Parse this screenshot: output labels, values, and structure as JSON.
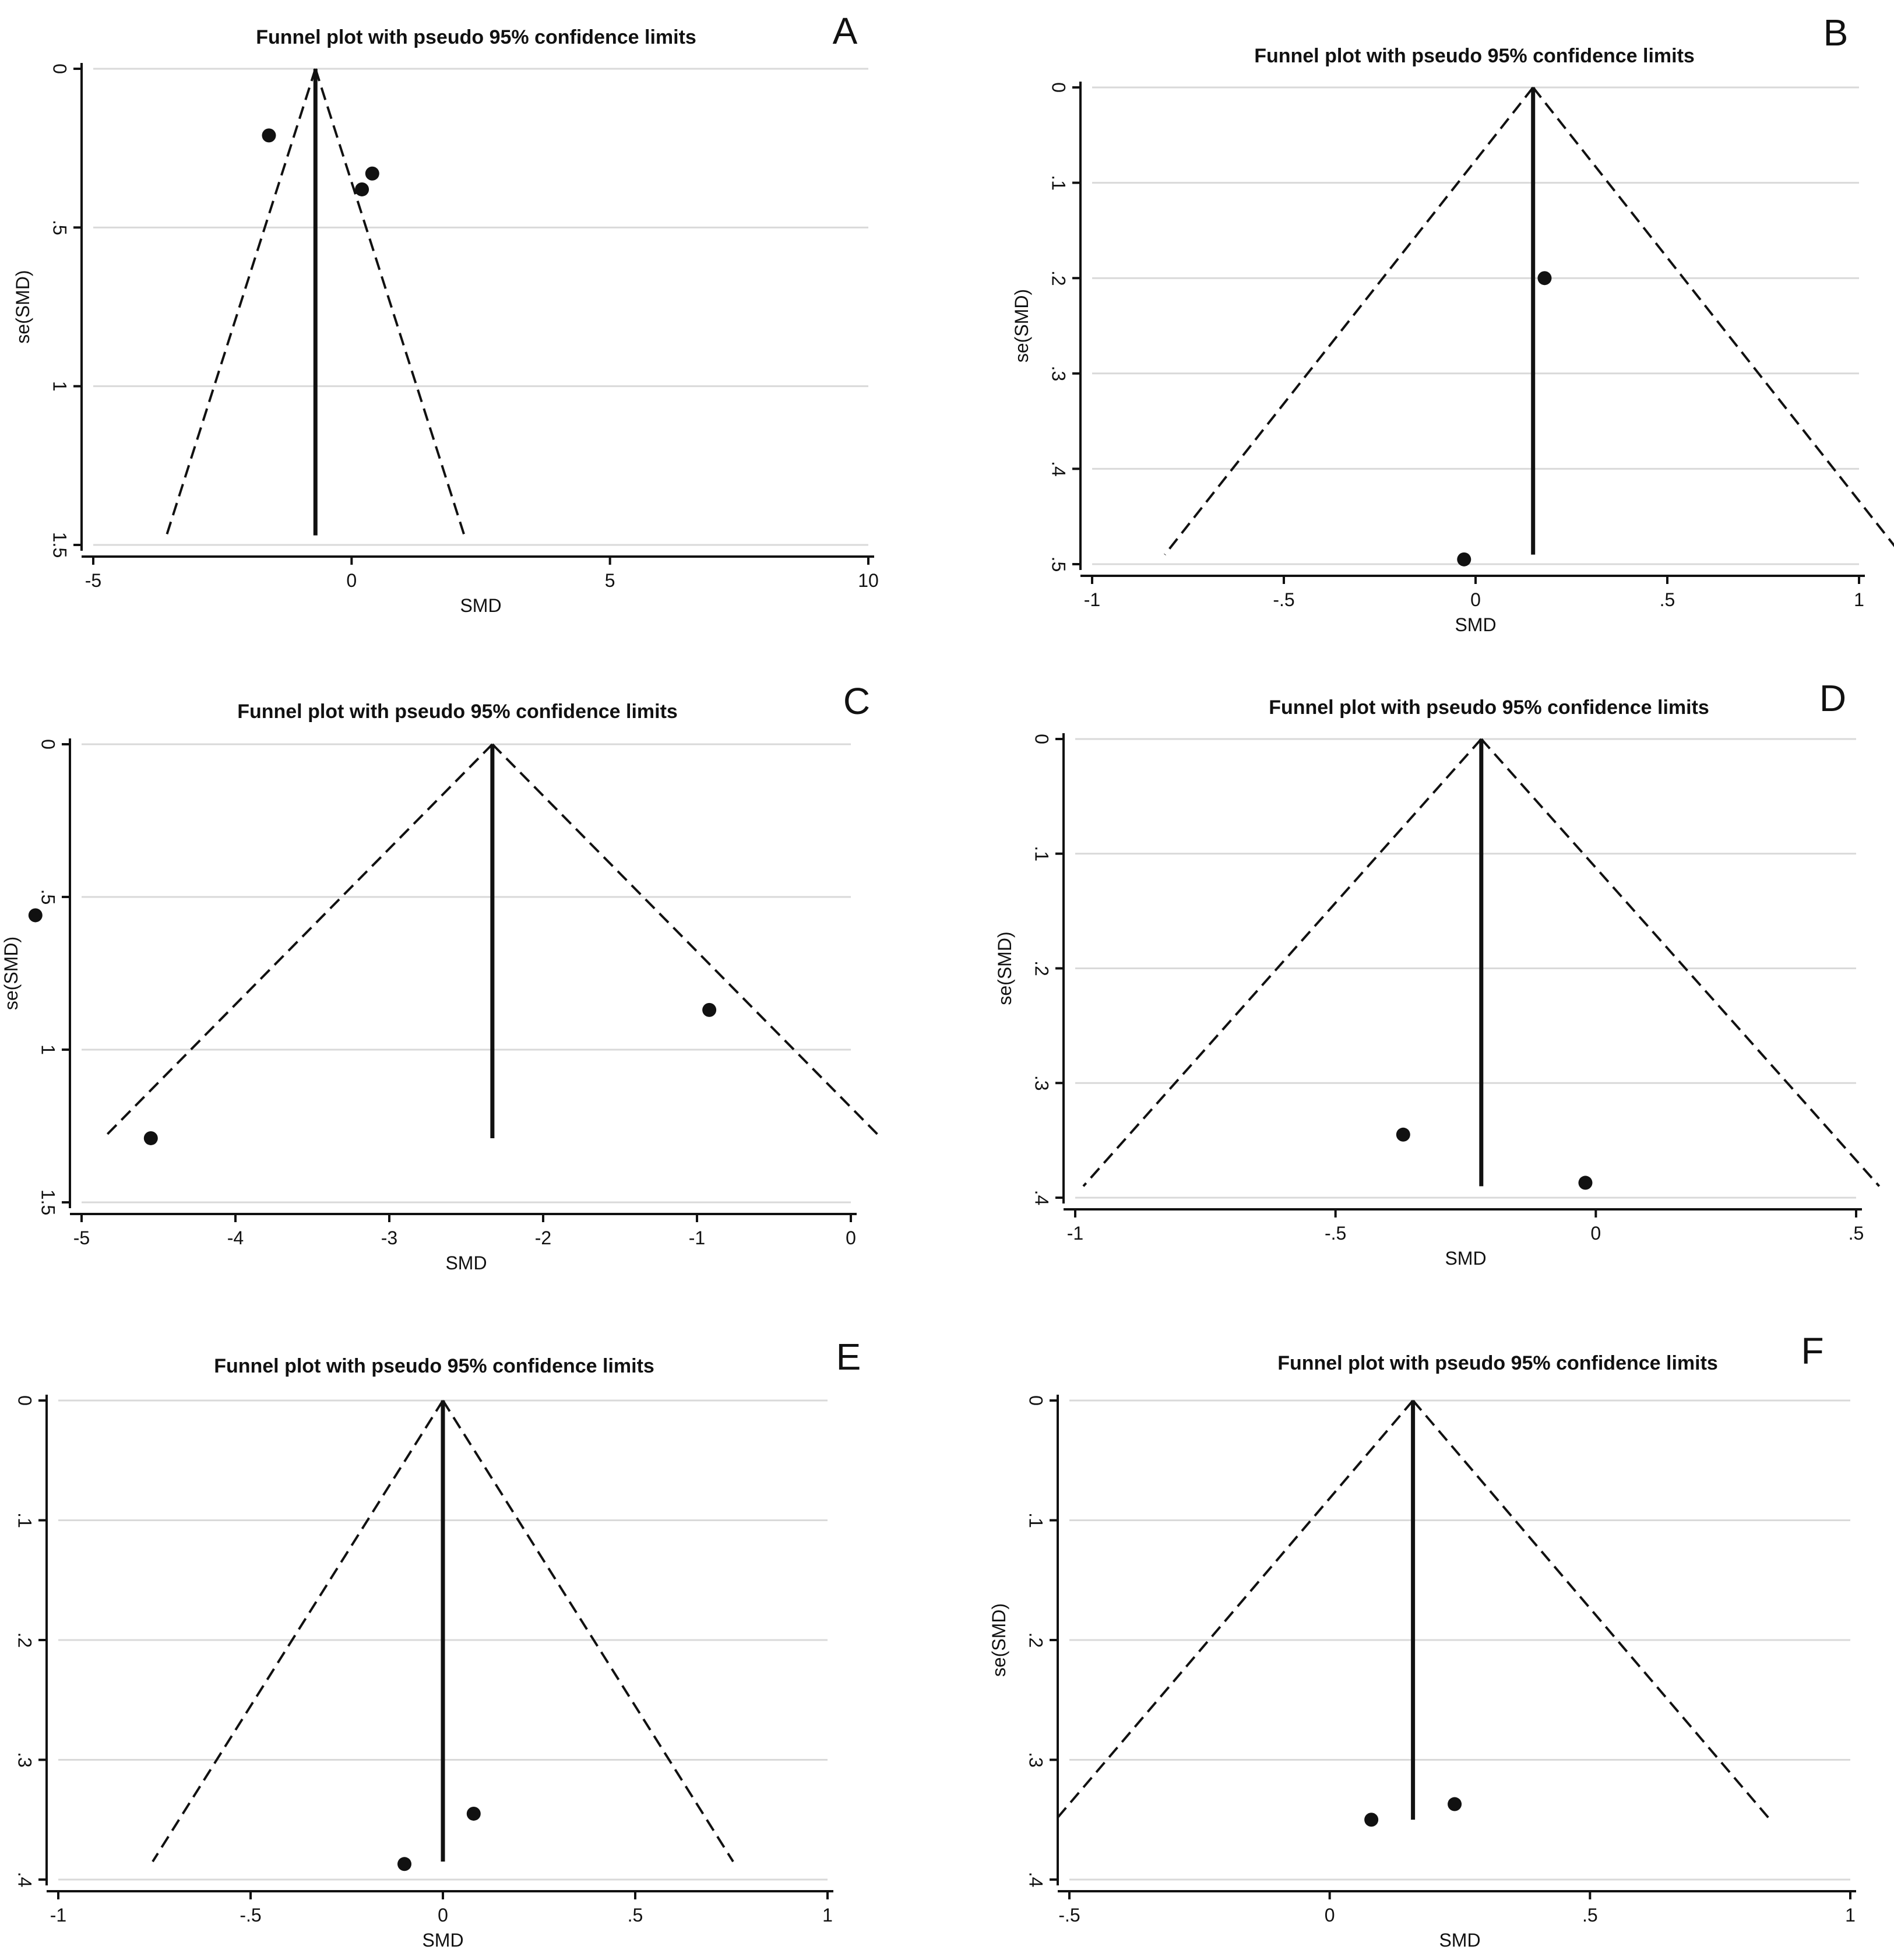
{
  "chart_data": [
    {
      "type": "scatter",
      "panel_letter": "A",
      "title": "Funnel plot with pseudo 95% confidence limits",
      "xlabel": "SMD",
      "ylabel": "se(SMD)",
      "xlim": [
        -5,
        10
      ],
      "ylim": [
        0,
        1.5
      ],
      "y_reversed": true,
      "xticks": [
        -5,
        0,
        5,
        10
      ],
      "yticks": [
        0,
        0.5,
        1,
        1.5
      ],
      "xtick_labels": [
        "-5",
        "0",
        "5",
        "10"
      ],
      "ytick_labels": [
        "0",
        ".5",
        "1",
        "1.5"
      ],
      "grid": "horizontal",
      "pooled_estimate": -0.7,
      "limit_max_se": 1.47,
      "points": [
        {
          "x": -1.6,
          "y": 0.21
        },
        {
          "x": 0.4,
          "y": 0.33
        },
        {
          "x": 0.2,
          "y": 0.38
        }
      ]
    },
    {
      "type": "scatter",
      "panel_letter": "B",
      "title": "Funnel plot with pseudo 95% confidence limits",
      "xlabel": "SMD",
      "ylabel": "se(SMD)",
      "xlim": [
        -1,
        1
      ],
      "ylim": [
        0,
        0.5
      ],
      "y_reversed": true,
      "xticks": [
        -1,
        -0.5,
        0,
        0.5,
        1
      ],
      "yticks": [
        0,
        0.1,
        0.2,
        0.3,
        0.4,
        0.5
      ],
      "xtick_labels": [
        "-1",
        "-.5",
        "0",
        ".5",
        "1"
      ],
      "ytick_labels": [
        "0",
        ".1",
        ".2",
        ".3",
        ".4",
        ".5"
      ],
      "grid": "horizontal",
      "pooled_estimate": 0.15,
      "limit_max_se": 0.49,
      "points": [
        {
          "x": 0.18,
          "y": 0.2
        },
        {
          "x": -0.03,
          "y": 0.495
        }
      ]
    },
    {
      "type": "scatter",
      "panel_letter": "C",
      "title": "Funnel plot with pseudo 95% confidence limits",
      "xlabel": "SMD",
      "ylabel": "se(SMD)",
      "xlim": [
        -5,
        0
      ],
      "ylim": [
        0,
        1.5
      ],
      "y_reversed": true,
      "xticks": [
        -5,
        -4,
        -3,
        -2,
        -1,
        0
      ],
      "yticks": [
        0,
        0.5,
        1,
        1.5
      ],
      "xtick_labels": [
        "-5",
        "-4",
        "-3",
        "-2",
        "-1",
        "0"
      ],
      "ytick_labels": [
        "0",
        ".5",
        "1",
        "1.5"
      ],
      "grid": "horizontal",
      "pooled_estimate": -2.33,
      "limit_max_se": 1.29,
      "points": [
        {
          "x": -5.3,
          "y": 0.56
        },
        {
          "x": -0.92,
          "y": 0.87
        },
        {
          "x": -4.55,
          "y": 1.29
        }
      ]
    },
    {
      "type": "scatter",
      "panel_letter": "D",
      "title": "Funnel plot with pseudo 95% confidence limits",
      "xlabel": "SMD",
      "ylabel": "se(SMD)",
      "xlim": [
        -1,
        0.5
      ],
      "ylim": [
        0,
        0.4
      ],
      "y_reversed": true,
      "xticks": [
        -1,
        -0.5,
        0,
        0.5
      ],
      "yticks": [
        0,
        0.1,
        0.2,
        0.3,
        0.4
      ],
      "xtick_labels": [
        "-1",
        "-.5",
        "0",
        ".5"
      ],
      "ytick_labels": [
        "0",
        ".1",
        ".2",
        ".3",
        ".4"
      ],
      "grid": "horizontal",
      "pooled_estimate": -0.22,
      "limit_max_se": 0.39,
      "points": [
        {
          "x": -0.37,
          "y": 0.345
        },
        {
          "x": -0.02,
          "y": 0.387
        }
      ]
    },
    {
      "type": "scatter",
      "panel_letter": "E",
      "title": "Funnel plot with pseudo 95% confidence limits",
      "xlabel": "SMD",
      "ylabel": "se(SMD)",
      "xlim": [
        -1,
        1
      ],
      "ylim": [
        0,
        0.4
      ],
      "y_reversed": true,
      "xticks": [
        -1,
        -0.5,
        0,
        0.5,
        1
      ],
      "yticks": [
        0,
        0.1,
        0.2,
        0.3,
        0.4
      ],
      "xtick_labels": [
        "-1",
        "-.5",
        "0",
        ".5",
        "1"
      ],
      "ytick_labels": [
        "0",
        ".1",
        ".2",
        ".3",
        ".4"
      ],
      "grid": "horizontal",
      "pooled_estimate": 0.0,
      "limit_max_se": 0.385,
      "points": [
        {
          "x": 0.08,
          "y": 0.345
        },
        {
          "x": -0.1,
          "y": 0.387
        }
      ]
    },
    {
      "type": "scatter",
      "panel_letter": "F",
      "title": "Funnel plot with pseudo 95% confidence limits",
      "xlabel": "SMD",
      "ylabel": "se(SMD)",
      "xlim": [
        -0.5,
        1
      ],
      "ylim": [
        0,
        0.4
      ],
      "y_reversed": true,
      "xticks": [
        -0.5,
        0,
        0.5,
        1
      ],
      "yticks": [
        0,
        0.1,
        0.2,
        0.3,
        0.4
      ],
      "xtick_labels": [
        "-.5",
        "0",
        ".5",
        "1"
      ],
      "ytick_labels": [
        "0",
        ".1",
        ".2",
        ".3",
        ".4"
      ],
      "grid": "horizontal",
      "pooled_estimate": 0.16,
      "limit_max_se": 0.35,
      "points": [
        {
          "x": 0.24,
          "y": 0.337
        },
        {
          "x": 0.08,
          "y": 0.35
        }
      ]
    }
  ],
  "colors": {
    "background": "#ffffff",
    "ink": "#111111",
    "gridline": "#d9d9d9"
  }
}
